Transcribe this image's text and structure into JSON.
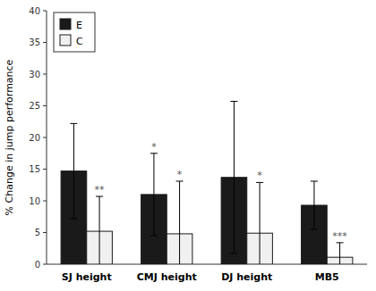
{
  "chart_data": {
    "type": "bar",
    "categories": [
      "SJ height",
      "CMJ height",
      "DJ height",
      "MB5"
    ],
    "series": [
      {
        "name": "E",
        "color": "#1a1a1a",
        "values": [
          14.7,
          11.0,
          13.7,
          9.3
        ],
        "errors": [
          7.5,
          6.5,
          12.0,
          3.8
        ],
        "significance": [
          null,
          "*",
          null,
          null
        ]
      },
      {
        "name": "C",
        "color": "#f0f0f0",
        "values": [
          5.2,
          4.8,
          4.9,
          1.1
        ],
        "errors": [
          5.5,
          8.3,
          8.0,
          2.3
        ],
        "significance": [
          "**",
          "*",
          "*",
          "***"
        ]
      }
    ],
    "ylabel": "% Change in jump performance",
    "ylim": [
      0,
      40
    ],
    "yticks": [
      0,
      5,
      10,
      15,
      20,
      25,
      30,
      35,
      40
    ],
    "legend": "upper left"
  }
}
